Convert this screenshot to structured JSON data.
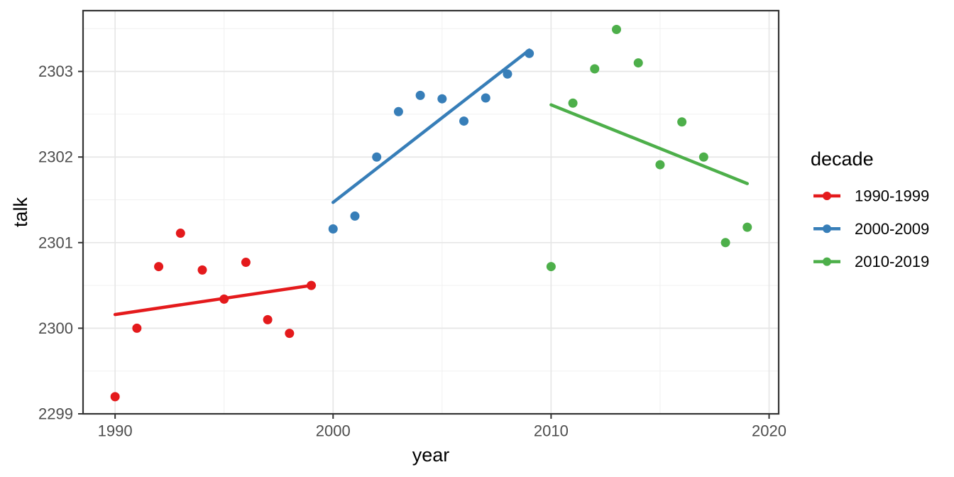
{
  "chart_data": {
    "type": "scatter",
    "title": "",
    "xlabel": "year",
    "ylabel": "talk",
    "xlim": [
      1988.53,
      2020.44
    ],
    "ylim": [
      2299.0,
      2303.71
    ],
    "x_ticks": [
      1990,
      2000,
      2010,
      2020
    ],
    "x_minor_ticks": [
      1995,
      2005,
      2015
    ],
    "y_ticks": [
      2299,
      2300,
      2301,
      2302,
      2303
    ],
    "y_minor_ticks": [
      2299.5,
      2300.5,
      2301.5,
      2302.5,
      2303.5
    ],
    "grid": true,
    "legend": {
      "title": "decade",
      "position": "right"
    },
    "series": [
      {
        "name": "1990-1999",
        "color": "#E41A1C",
        "x": [
          1990,
          1991,
          1992,
          1993,
          1994,
          1995,
          1996,
          1997,
          1998,
          1999
        ],
        "y": [
          2299.2,
          2300.0,
          2300.72,
          2301.11,
          2300.68,
          2300.34,
          2300.77,
          2300.1,
          2299.94,
          2300.5
        ],
        "trend": {
          "x1": 1990,
          "y1": 2300.16,
          "x2": 1999,
          "y2": 2300.5
        }
      },
      {
        "name": "2000-2009",
        "color": "#377EB8",
        "x": [
          2000,
          2001,
          2002,
          2003,
          2004,
          2005,
          2006,
          2007,
          2008,
          2009
        ],
        "y": [
          2301.16,
          2301.31,
          2302.0,
          2302.53,
          2302.72,
          2302.68,
          2302.42,
          2302.69,
          2302.97,
          2303.21
        ],
        "trend": {
          "x1": 2000,
          "y1": 2301.47,
          "x2": 2009,
          "y2": 2303.25
        }
      },
      {
        "name": "2010-2019",
        "color": "#4DAF4A",
        "x": [
          2010,
          2011,
          2012,
          2013,
          2014,
          2015,
          2016,
          2017,
          2018,
          2019
        ],
        "y": [
          2300.72,
          2302.63,
          2303.03,
          2303.49,
          2303.1,
          2301.91,
          2302.41,
          2302.0,
          2301.0,
          2301.18
        ],
        "trend": {
          "x1": 2010,
          "y1": 2302.61,
          "x2": 2019,
          "y2": 2301.69
        }
      }
    ],
    "style": {
      "background": "#ffffff",
      "panel_background": "#ffffff",
      "panel_border_color": "#333333",
      "grid_major_color": "#e6e6e6",
      "grid_minor_color": "#f0f0f0",
      "tick_color": "#333333",
      "axis_text_color": "#4d4d4d",
      "point_radius": 6.5,
      "trend_width": 4.5
    }
  }
}
